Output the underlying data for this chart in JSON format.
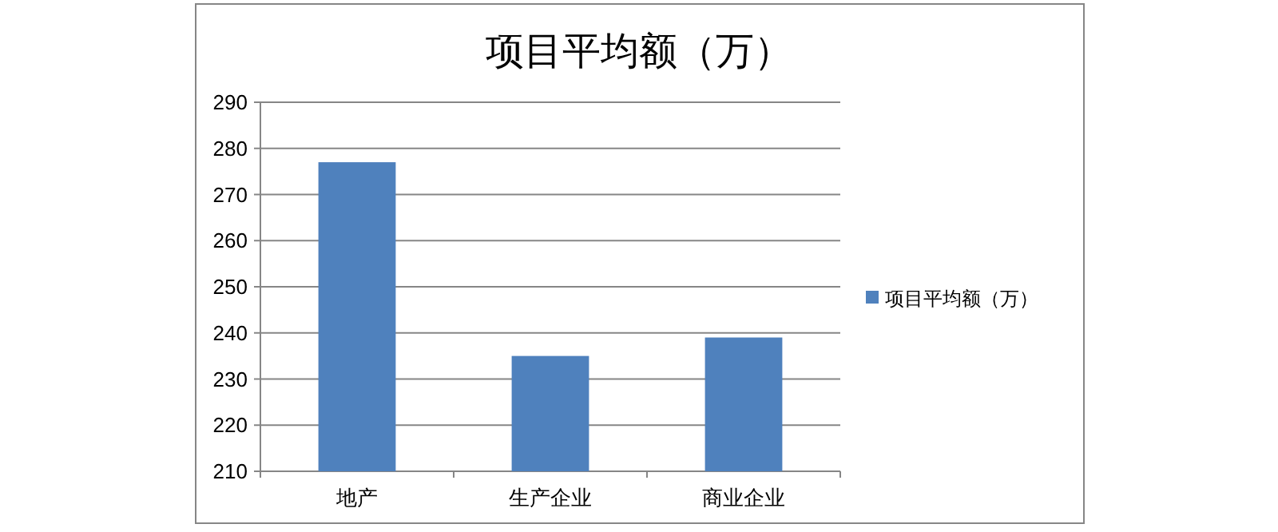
{
  "chart_data": {
    "type": "bar",
    "title": "项目平均额（万）",
    "categories": [
      "地产",
      "生产企业",
      "商业企业"
    ],
    "series": [
      {
        "name": "项目平均额（万）",
        "color": "#4f81bd",
        "values": [
          277,
          235,
          239
        ]
      }
    ],
    "ylim": [
      210,
      290
    ],
    "yticks": [
      210,
      220,
      230,
      240,
      250,
      260,
      270,
      280,
      290
    ],
    "grid": "y",
    "legend": "right"
  }
}
